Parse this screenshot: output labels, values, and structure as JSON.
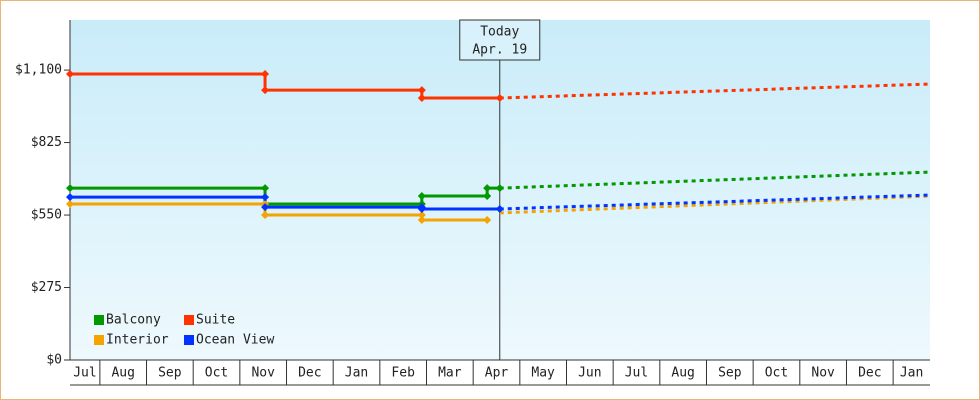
{
  "chart_data": {
    "type": "line",
    "xlim": [
      0.36,
      18.79
    ],
    "xticks": [
      {
        "value": 0.5,
        "label": "Jul"
      },
      {
        "value": 1.5,
        "label": "Aug"
      },
      {
        "value": 2.5,
        "label": "Sep"
      },
      {
        "value": 3.5,
        "label": "Oct"
      },
      {
        "value": 4.5,
        "label": "Nov"
      },
      {
        "value": 5.5,
        "label": "Dec"
      },
      {
        "value": 6.5,
        "label": "Jan"
      },
      {
        "value": 7.5,
        "label": "Feb"
      },
      {
        "value": 8.5,
        "label": "Mar"
      },
      {
        "value": 9.5,
        "label": "Apr"
      },
      {
        "value": 10.5,
        "label": "May"
      },
      {
        "value": 11.5,
        "label": "Jun"
      },
      {
        "value": 12.5,
        "label": "Jul"
      },
      {
        "value": 13.5,
        "label": "Aug"
      },
      {
        "value": 14.5,
        "label": "Sep"
      },
      {
        "value": 15.5,
        "label": "Oct"
      },
      {
        "value": 16.5,
        "label": "Nov"
      },
      {
        "value": 17.5,
        "label": "Dec"
      },
      {
        "value": 18.5,
        "label": "Jan"
      }
    ],
    "ylim": [
      0,
      1290
    ],
    "yticks": [
      {
        "value": 0,
        "label": "$0"
      },
      {
        "value": 275,
        "label": "$275"
      },
      {
        "value": 550,
        "label": "$550"
      },
      {
        "value": 825,
        "label": "$825"
      },
      {
        "value": 1100,
        "label": "$1,100"
      }
    ],
    "legend": "bottom-left",
    "today": {
      "x": 9.57,
      "label": [
        "Today",
        "Apr. 19"
      ]
    },
    "series": [
      {
        "name": "Balcony",
        "color": "#009900",
        "x": [
          0.36,
          4.54,
          4.54,
          7.9,
          7.9,
          9.3,
          9.3,
          9.57
        ],
        "values": [
          652,
          652,
          592,
          592,
          622,
          622,
          652,
          652
        ],
        "forecast_x": [
          9.57,
          18.79
        ],
        "forecast_values": [
          652,
          713
        ]
      },
      {
        "name": "Suite",
        "color": "#ff3300",
        "x": [
          0.36,
          4.54,
          4.54,
          7.9,
          7.9,
          9.57
        ],
        "values": [
          1085,
          1085,
          1024,
          1024,
          994,
          994
        ],
        "forecast_x": [
          9.57,
          18.79
        ],
        "forecast_values": [
          994,
          1047
        ]
      },
      {
        "name": "Interior",
        "color": "#f5a300",
        "x": [
          0.36,
          4.54,
          4.54,
          7.9,
          7.9,
          9.3
        ],
        "values": [
          592,
          592,
          550,
          550,
          531,
          531
        ],
        "forecast_x": [
          9.57,
          18.79
        ],
        "forecast_values": [
          558,
          622
        ]
      },
      {
        "name": "Ocean View",
        "color": "#0033ff",
        "x": [
          0.36,
          4.54,
          4.54,
          7.9,
          7.9,
          9.57
        ],
        "values": [
          618,
          618,
          580,
          580,
          573,
          573
        ],
        "forecast_x": [
          9.57,
          18.79
        ],
        "forecast_values": [
          573,
          626
        ]
      }
    ]
  }
}
